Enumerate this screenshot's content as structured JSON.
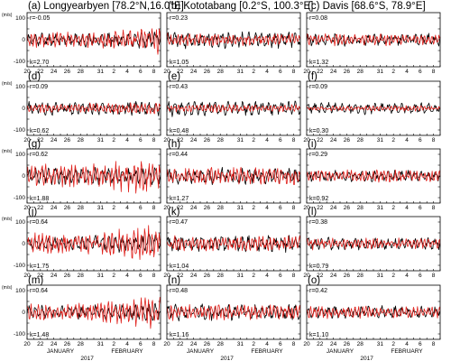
{
  "figure": {
    "unit_label": "(m/s)",
    "month_labels": [
      "JANUARY",
      "FEBRUARY"
    ],
    "year_label": "2017",
    "x_tick_labels": [
      "20",
      "22",
      "24",
      "26",
      "28",
      "31",
      "2",
      "4",
      "6",
      "8"
    ],
    "y_tick_labels": [
      "100",
      "50",
      "0",
      "-50",
      "-100"
    ],
    "columns": [
      {
        "label": "(a) Longyearbyen [78.2°N,16.0°E]"
      },
      {
        "label": "(b) Kototabang [0.2°S, 100.3°E]"
      },
      {
        "label": "(c) Davis [68.6°S, 78.9°E]"
      }
    ],
    "colors": {
      "series_red": "#e0201b",
      "series_black": "#000000"
    }
  },
  "chart_data": [
    {
      "type": "line",
      "panel_letter": "(a)",
      "r_text": "r=-0.05",
      "k_text": "k=2.70",
      "x_range": [
        "2017-01-20",
        "2017-02-09"
      ],
      "ylim": [
        -125,
        125
      ],
      "amp_red": 38,
      "amp_black": 34,
      "seed": 11,
      "grow": 0.8
    },
    {
      "type": "line",
      "panel_letter": "(b)",
      "r_text": "r=0.23",
      "k_text": "k=1.05",
      "x_range": [
        "2017-01-20",
        "2017-02-09"
      ],
      "ylim": [
        -125,
        125
      ],
      "amp_red": 30,
      "amp_black": 40,
      "seed": 12,
      "grow": 0
    },
    {
      "type": "line",
      "panel_letter": "(c)",
      "r_text": "r=0.08",
      "k_text": "k=1.32",
      "x_range": [
        "2017-01-20",
        "2017-02-09"
      ],
      "ylim": [
        -125,
        125
      ],
      "amp_red": 28,
      "amp_black": 30,
      "seed": 13,
      "grow": 0
    },
    {
      "type": "line",
      "panel_letter": "(d)",
      "r_text": "r=0.09",
      "k_text": "k=0.62",
      "x_range": [
        "2017-01-20",
        "2017-02-09"
      ],
      "ylim": [
        -125,
        125
      ],
      "amp_red": 22,
      "amp_black": 32,
      "seed": 21,
      "grow": 0.4
    },
    {
      "type": "line",
      "panel_letter": "(e)",
      "r_text": "r=0.43",
      "k_text": "k=0.48",
      "x_range": [
        "2017-01-20",
        "2017-02-09"
      ],
      "ylim": [
        -125,
        125
      ],
      "amp_red": 18,
      "amp_black": 38,
      "seed": 22,
      "grow": 0
    },
    {
      "type": "line",
      "panel_letter": "(f)",
      "r_text": "r=0.09",
      "k_text": "k=0.30",
      "x_range": [
        "2017-01-20",
        "2017-02-09"
      ],
      "ylim": [
        -125,
        125
      ],
      "amp_red": 12,
      "amp_black": 28,
      "seed": 23,
      "grow": 0
    },
    {
      "type": "line",
      "panel_letter": "(g)",
      "r_text": "r=0.62",
      "k_text": "k=1.88",
      "x_range": [
        "2017-01-20",
        "2017-02-09"
      ],
      "ylim": [
        -125,
        125
      ],
      "amp_red": 55,
      "amp_black": 40,
      "seed": 31,
      "grow": 0.6
    },
    {
      "type": "line",
      "panel_letter": "(h)",
      "r_text": "r=0.44",
      "k_text": "k=1.27",
      "x_range": [
        "2017-01-20",
        "2017-02-09"
      ],
      "ylim": [
        -125,
        125
      ],
      "amp_red": 42,
      "amp_black": 40,
      "seed": 32,
      "grow": 0
    },
    {
      "type": "line",
      "panel_letter": "(i)",
      "r_text": "r=0.29",
      "k_text": "k=0.92",
      "x_range": [
        "2017-01-20",
        "2017-02-09"
      ],
      "ylim": [
        -125,
        125
      ],
      "amp_red": 28,
      "amp_black": 28,
      "seed": 33,
      "grow": 0
    },
    {
      "type": "line",
      "panel_letter": "(j)",
      "r_text": "r=0.64",
      "k_text": "k=1.75",
      "x_range": [
        "2017-01-20",
        "2017-02-09"
      ],
      "ylim": [
        -125,
        125
      ],
      "amp_red": 50,
      "amp_black": 35,
      "seed": 41,
      "grow": 1.0
    },
    {
      "type": "line",
      "panel_letter": "(k)",
      "r_text": "r=0.47",
      "k_text": "k=1.04",
      "x_range": [
        "2017-01-20",
        "2017-02-09"
      ],
      "ylim": [
        -125,
        125
      ],
      "amp_red": 38,
      "amp_black": 40,
      "seed": 42,
      "grow": 0
    },
    {
      "type": "line",
      "panel_letter": "(l)",
      "r_text": "r=0.38",
      "k_text": "k=0.79",
      "x_range": [
        "2017-01-20",
        "2017-02-09"
      ],
      "ylim": [
        -125,
        125
      ],
      "amp_red": 26,
      "amp_black": 30,
      "seed": 43,
      "grow": 0
    },
    {
      "type": "line",
      "panel_letter": "(m)",
      "r_text": "r=0.64",
      "k_text": "k=1.48",
      "x_range": [
        "2017-01-20",
        "2017-02-09"
      ],
      "ylim": [
        -125,
        125
      ],
      "amp_red": 45,
      "amp_black": 35,
      "seed": 51,
      "grow": 0.7
    },
    {
      "type": "line",
      "panel_letter": "(n)",
      "r_text": "r=0.48",
      "k_text": "k=1.16",
      "x_range": [
        "2017-01-20",
        "2017-02-09"
      ],
      "ylim": [
        -125,
        125
      ],
      "amp_red": 38,
      "amp_black": 40,
      "seed": 52,
      "grow": 0
    },
    {
      "type": "line",
      "panel_letter": "(o)",
      "r_text": "r=0.42",
      "k_text": "k=1.10",
      "x_range": [
        "2017-01-20",
        "2017-02-09"
      ],
      "ylim": [
        -125,
        125
      ],
      "amp_red": 30,
      "amp_black": 30,
      "seed": 53,
      "grow": 0
    }
  ]
}
